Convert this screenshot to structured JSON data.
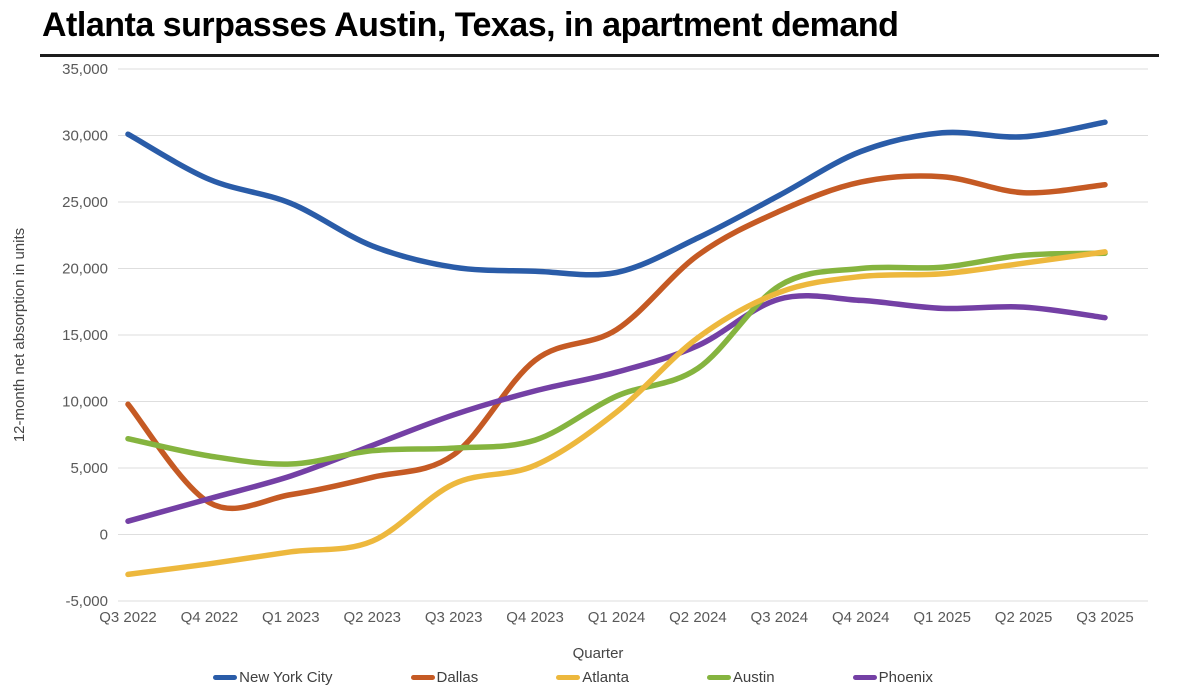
{
  "chart_data": {
    "type": "line",
    "title": "Atlanta surpasses Austin, Texas, in apartment demand",
    "x_axis_title": "Quarter",
    "y_axis_title": "12-month net absorption in units",
    "ylim": [
      -5000,
      35000
    ],
    "y_tick_step": 5000,
    "y_tick_labels": [
      "35,000",
      "30,000",
      "25,000",
      "20,000",
      "15,000",
      "10,000",
      "5,000",
      "0",
      "-5,000"
    ],
    "grid": true,
    "legend_position": "bottom",
    "smooth_lines": true,
    "categories": [
      "Q3 2022",
      "Q4 2022",
      "Q1 2023",
      "Q2 2023",
      "Q3 2023",
      "Q4 2023",
      "Q1 2024",
      "Q2 2024",
      "Q3 2024",
      "Q4 2024",
      "Q1 2025",
      "Q2 2025",
      "Q3 2025"
    ],
    "series": [
      {
        "name": "New York City",
        "color": "#2A5CA8",
        "values": [
          30100,
          26700,
          24900,
          21700,
          20100,
          19800,
          19700,
          22300,
          25500,
          28800,
          30200,
          29900,
          31000
        ]
      },
      {
        "name": "Dallas",
        "color": "#C55A24",
        "values": [
          9800,
          2400,
          3000,
          4300,
          6000,
          13100,
          15400,
          21000,
          24300,
          26500,
          26900,
          25700,
          26300
        ]
      },
      {
        "name": "Atlanta",
        "color": "#EDB83D",
        "values": [
          -3000,
          -2200,
          -1300,
          -500,
          3800,
          5200,
          9200,
          14800,
          18200,
          19400,
          19600,
          20400,
          21250
        ]
      },
      {
        "name": "Austin",
        "color": "#85B43F",
        "values": [
          7200,
          5900,
          5300,
          6300,
          6500,
          7100,
          10400,
          12500,
          18700,
          20000,
          20100,
          21000,
          21150
        ]
      },
      {
        "name": "Phoenix",
        "color": "#7440A5",
        "values": [
          1000,
          2700,
          4400,
          6700,
          9000,
          10800,
          12200,
          14200,
          17700,
          17600,
          17000,
          17100,
          16300
        ]
      }
    ]
  }
}
